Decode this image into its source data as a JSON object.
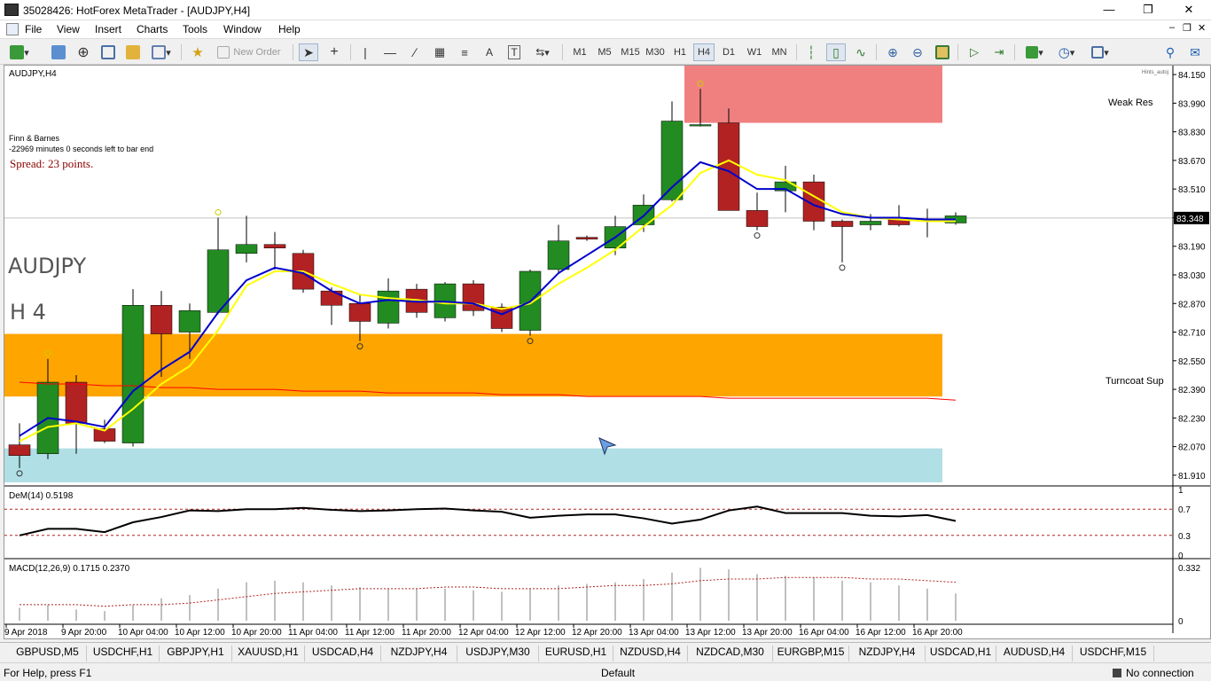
{
  "window": {
    "title": "35028426: HotForex MetaTrader - [AUDJPY,H4]"
  },
  "menu": [
    "File",
    "View",
    "Insert",
    "Charts",
    "Tools",
    "Window",
    "Help"
  ],
  "toolbar": {
    "new_order": "New Order",
    "timeframes": [
      "M1",
      "M5",
      "M15",
      "M30",
      "H1",
      "H4",
      "D1",
      "W1",
      "MN"
    ],
    "active_timeframe": "H4"
  },
  "chart": {
    "label": "AUDJPY,H4",
    "info_name": "Finn & Barnes",
    "info_timer": "-22969 minutes 0 seconds left to bar end",
    "spread": "Spread: 23 points.",
    "big_symbol": "AUDJPY",
    "big_tf": "H 4",
    "weak_res": "Weak Res",
    "turncoat_sup": "Turncoat Sup",
    "current_price": "83.348",
    "watermark": "Hints_autoj",
    "price_ticks": [
      "84.150",
      "83.990",
      "83.830",
      "83.670",
      "83.510",
      "83.350",
      "83.190",
      "83.030",
      "82.870",
      "82.710",
      "82.550",
      "82.390",
      "82.230",
      "82.070",
      "81.910"
    ],
    "time_ticks": [
      "9 Apr 2018",
      "9 Apr 20:00",
      "10 Apr 04:00",
      "10 Apr 12:00",
      "10 Apr 20:00",
      "11 Apr 04:00",
      "11 Apr 12:00",
      "11 Apr 20:00",
      "12 Apr 04:00",
      "12 Apr 12:00",
      "12 Apr 20:00",
      "13 Apr 04:00",
      "13 Apr 12:00",
      "13 Apr 20:00",
      "16 Apr 04:00",
      "16 Apr 12:00",
      "16 Apr 20:00"
    ],
    "colors": {
      "bull": "#228b22",
      "bear": "#b22222",
      "resistance_zone": "#f08080",
      "support_zone": "#ffa500",
      "lower_zone": "#b0dfe5",
      "ma_fast": "#0000cd",
      "ma_slow": "#ffff00",
      "ma_long": "#ff0000"
    }
  },
  "chart_data": {
    "type": "candlestick",
    "ylim": [
      81.86,
      84.2
    ],
    "candles": [
      {
        "o": 82.08,
        "h": 82.2,
        "l": 81.95,
        "c": 82.02
      },
      {
        "o": 82.03,
        "h": 82.56,
        "l": 82.0,
        "c": 82.43
      },
      {
        "o": 82.43,
        "h": 82.47,
        "l": 82.03,
        "c": 82.2
      },
      {
        "o": 82.17,
        "h": 82.22,
        "l": 82.09,
        "c": 82.1
      },
      {
        "o": 82.09,
        "h": 82.95,
        "l": 82.07,
        "c": 82.86
      },
      {
        "o": 82.86,
        "h": 82.94,
        "l": 82.46,
        "c": 82.7
      },
      {
        "o": 82.71,
        "h": 82.87,
        "l": 82.56,
        "c": 82.83
      },
      {
        "o": 82.82,
        "h": 83.35,
        "l": 82.81,
        "c": 83.17
      },
      {
        "o": 83.15,
        "h": 83.36,
        "l": 83.1,
        "c": 83.2
      },
      {
        "o": 83.2,
        "h": 83.27,
        "l": 83.06,
        "c": 83.18
      },
      {
        "o": 83.15,
        "h": 83.17,
        "l": 82.93,
        "c": 82.95
      },
      {
        "o": 82.94,
        "h": 82.96,
        "l": 82.75,
        "c": 82.86
      },
      {
        "o": 82.87,
        "h": 82.92,
        "l": 82.66,
        "c": 82.77
      },
      {
        "o": 82.76,
        "h": 83.01,
        "l": 82.73,
        "c": 82.94
      },
      {
        "o": 82.95,
        "h": 82.98,
        "l": 82.79,
        "c": 82.82
      },
      {
        "o": 82.79,
        "h": 82.99,
        "l": 82.77,
        "c": 82.98
      },
      {
        "o": 82.98,
        "h": 83.0,
        "l": 82.8,
        "c": 82.83
      },
      {
        "o": 82.85,
        "h": 82.87,
        "l": 82.71,
        "c": 82.73
      },
      {
        "o": 82.72,
        "h": 83.06,
        "l": 82.69,
        "c": 83.05
      },
      {
        "o": 83.06,
        "h": 83.31,
        "l": 83.04,
        "c": 83.22
      },
      {
        "o": 83.24,
        "h": 83.25,
        "l": 83.22,
        "c": 83.23
      },
      {
        "o": 83.18,
        "h": 83.36,
        "l": 83.14,
        "c": 83.3
      },
      {
        "o": 83.31,
        "h": 83.48,
        "l": 83.27,
        "c": 83.42
      },
      {
        "o": 83.45,
        "h": 84.0,
        "l": 83.44,
        "c": 83.89
      },
      {
        "o": 83.87,
        "h": 84.07,
        "l": 83.86,
        "c": 83.87
      },
      {
        "o": 83.88,
        "h": 83.96,
        "l": 83.39,
        "c": 83.39
      },
      {
        "o": 83.39,
        "h": 83.49,
        "l": 83.28,
        "c": 83.3
      },
      {
        "o": 83.5,
        "h": 83.64,
        "l": 83.38,
        "c": 83.55
      },
      {
        "o": 83.55,
        "h": 83.59,
        "l": 83.28,
        "c": 83.33
      },
      {
        "o": 83.33,
        "h": 83.34,
        "l": 83.1,
        "c": 83.3
      },
      {
        "o": 83.31,
        "h": 83.37,
        "l": 83.28,
        "c": 83.33
      },
      {
        "o": 83.34,
        "h": 83.42,
        "l": 83.3,
        "c": 83.31
      },
      {
        "o": 83.33,
        "h": 83.4,
        "l": 83.24,
        "c": 83.34
      },
      {
        "o": 83.32,
        "h": 83.38,
        "l": 83.31,
        "c": 83.36
      }
    ],
    "ma_fast": [
      82.13,
      82.23,
      82.21,
      82.18,
      82.38,
      82.5,
      82.6,
      82.82,
      83.0,
      83.07,
      83.04,
      82.94,
      82.87,
      82.89,
      82.88,
      82.88,
      82.87,
      82.81,
      82.88,
      83.04,
      83.14,
      83.24,
      83.36,
      83.52,
      83.66,
      83.61,
      83.51,
      83.51,
      83.42,
      83.37,
      83.35,
      83.35,
      83.34,
      83.34
    ],
    "ma_slow": [
      82.1,
      82.18,
      82.2,
      82.16,
      82.28,
      82.42,
      82.52,
      82.72,
      82.97,
      83.05,
      83.05,
      82.98,
      82.92,
      82.9,
      82.89,
      82.87,
      82.87,
      82.84,
      82.87,
      82.98,
      83.07,
      83.17,
      83.3,
      83.42,
      83.6,
      83.67,
      83.59,
      83.56,
      83.47,
      83.38,
      83.35,
      83.34,
      83.33,
      83.33
    ],
    "ma_long": [
      82.43,
      82.42,
      82.42,
      82.41,
      82.41,
      82.4,
      82.4,
      82.39,
      82.39,
      82.39,
      82.38,
      82.38,
      82.38,
      82.37,
      82.37,
      82.37,
      82.37,
      82.36,
      82.36,
      82.36,
      82.35,
      82.35,
      82.35,
      82.35,
      82.35,
      82.34,
      82.34,
      82.34,
      82.34,
      82.34,
      82.34,
      82.34,
      82.34,
      82.33
    ],
    "zones": {
      "resistance": [
        83.88,
        84.2
      ],
      "support": [
        82.35,
        82.7
      ],
      "lower": [
        81.87,
        82.06
      ]
    },
    "dem": {
      "label": "DeM(14) 0.5198",
      "ylim": [
        0,
        1
      ],
      "levels": [
        0.7,
        0.3
      ],
      "ticks": [
        "1",
        "0.7",
        "0.3",
        "0"
      ],
      "values": [
        0.3,
        0.4,
        0.4,
        0.35,
        0.5,
        0.58,
        0.68,
        0.67,
        0.7,
        0.7,
        0.72,
        0.69,
        0.67,
        0.68,
        0.7,
        0.71,
        0.68,
        0.66,
        0.57,
        0.6,
        0.62,
        0.62,
        0.56,
        0.48,
        0.54,
        0.68,
        0.74,
        0.64,
        0.64,
        0.64,
        0.6,
        0.59,
        0.61,
        0.52
      ]
    },
    "macd": {
      "label": "MACD(12,26,9) 0.1715 0.2370",
      "ticks": [
        "0.332",
        "0"
      ],
      "hist": [
        0.08,
        0.1,
        0.07,
        0.06,
        0.1,
        0.14,
        0.16,
        0.2,
        0.24,
        0.25,
        0.24,
        0.22,
        0.21,
        0.2,
        0.2,
        0.2,
        0.19,
        0.18,
        0.2,
        0.22,
        0.23,
        0.24,
        0.26,
        0.3,
        0.33,
        0.32,
        0.29,
        0.28,
        0.27,
        0.25,
        0.24,
        0.22,
        0.2,
        0.17
      ],
      "signal": [
        0.1,
        0.1,
        0.1,
        0.09,
        0.1,
        0.1,
        0.11,
        0.13,
        0.15,
        0.17,
        0.18,
        0.19,
        0.2,
        0.2,
        0.2,
        0.21,
        0.21,
        0.2,
        0.2,
        0.2,
        0.21,
        0.22,
        0.22,
        0.23,
        0.25,
        0.26,
        0.26,
        0.27,
        0.27,
        0.27,
        0.26,
        0.26,
        0.25,
        0.24
      ]
    }
  },
  "symbol_tabs": [
    "GBPUSD,M5",
    "USDCHF,H1",
    "GBPJPY,H1",
    "XAUUSD,H1",
    "USDCAD,H4",
    "NZDJPY,H4",
    "USDJPY,M30",
    "EURUSD,H1",
    "NZDUSD,H4",
    "NZDCAD,M30",
    "EURGBP,M15",
    "NZDJPY,H4",
    "USDCAD,H1",
    "AUDUSD,H4",
    "USDCHF,M15"
  ],
  "status": {
    "help": "For Help, press F1",
    "profile": "Default",
    "connection": "No connection"
  }
}
